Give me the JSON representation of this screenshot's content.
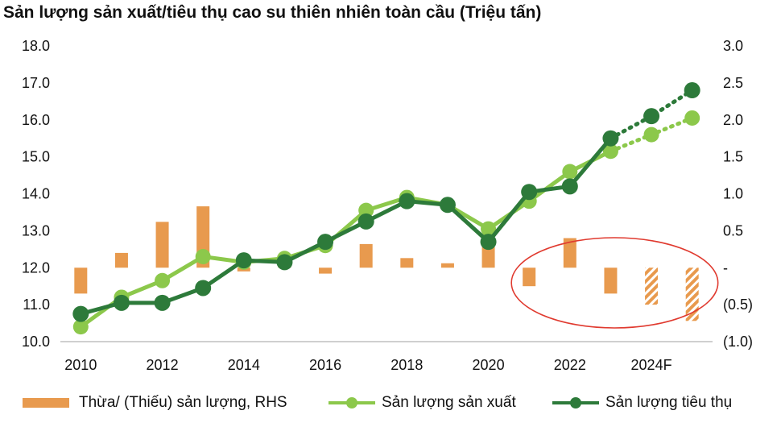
{
  "title": "Sản lượng sản xuất/tiêu thụ cao su thiên nhiên toàn cầu (Triệu tấn)",
  "colors": {
    "bar": "#E89A4E",
    "production": "#8CC84B",
    "consumption": "#2D7A3A",
    "highlight": "#E03A2F",
    "axis": "#BFBFBF"
  },
  "chart_data": {
    "type": "combo",
    "x": [
      "2010",
      "2011",
      "2012",
      "2013",
      "2014",
      "2015",
      "2016",
      "2017",
      "2018",
      "2019",
      "2020",
      "2021",
      "2022",
      "2023",
      "2024F",
      "2025F"
    ],
    "x_tick_labels": [
      "2010",
      "",
      "2012",
      "",
      "2014",
      "",
      "2016",
      "",
      "2018",
      "",
      "2020",
      "",
      "2022",
      "",
      "2024F",
      ""
    ],
    "y_left_ticks": [
      "18.0",
      "17.0",
      "16.0",
      "15.0",
      "14.0",
      "13.0",
      "12.0",
      "11.0",
      "10.0"
    ],
    "y_left_range": [
      10,
      18
    ],
    "y_right_ticks": [
      "3.0",
      "2.5",
      "2.0",
      "1.5",
      "1.0",
      "0.5",
      "-",
      "(0.5)",
      "(1.0)"
    ],
    "y_right_range": [
      -1,
      3
    ],
    "series": [
      {
        "name": "Thừa/ (Thiếu) sản lượng, RHS",
        "type": "bar",
        "axis": "right",
        "values": [
          -0.35,
          0.2,
          0.62,
          0.83,
          -0.05,
          0.05,
          -0.08,
          0.32,
          0.13,
          0.06,
          0.28,
          -0.25,
          0.4,
          -0.35,
          -0.5,
          -0.72
        ],
        "forecast_from_index": 14
      },
      {
        "name": "Sản lượng sản xuất",
        "type": "line",
        "axis": "left",
        "values": [
          10.4,
          11.2,
          11.65,
          12.3,
          12.15,
          12.25,
          12.6,
          13.55,
          13.9,
          13.7,
          13.05,
          13.8,
          14.6,
          15.15,
          15.6,
          16.05
        ],
        "forecast_from_index": 14
      },
      {
        "name": "Sản lượng tiêu thụ",
        "type": "line",
        "axis": "left",
        "values": [
          10.75,
          11.05,
          11.05,
          11.45,
          12.2,
          12.15,
          12.7,
          13.25,
          13.8,
          13.7,
          12.7,
          14.05,
          14.2,
          15.5,
          16.1,
          16.8
        ],
        "forecast_from_index": 14
      }
    ],
    "highlight_ellipse_years": [
      "2021",
      "2025F"
    ]
  },
  "legend": {
    "bar_label": "Thừa/ (Thiếu) sản lượng, RHS",
    "production_label": "Sản lượng sản xuất",
    "consumption_label": "Sản lượng tiêu thụ"
  }
}
